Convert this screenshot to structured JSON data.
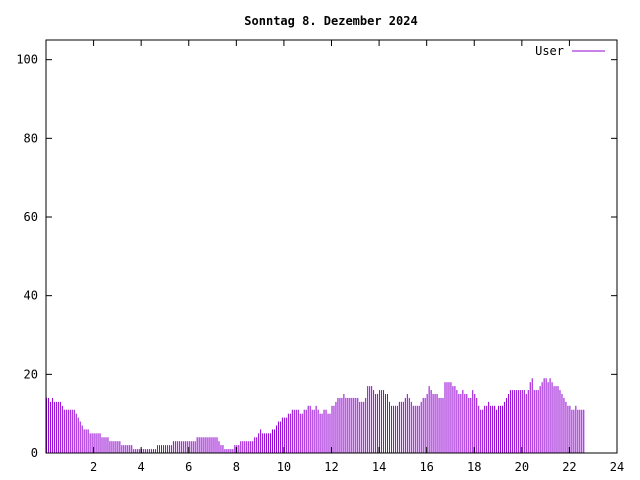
{
  "chart_data": {
    "type": "bar",
    "title": "Sonntag 8. Dezember 2024",
    "xlabel": "",
    "ylabel": "",
    "xlim": [
      0,
      24
    ],
    "ylim": [
      0,
      105
    ],
    "x_ticks": [
      2,
      4,
      6,
      8,
      10,
      12,
      14,
      16,
      18,
      20,
      22,
      24
    ],
    "x_tick_labels": [
      "2",
      "4",
      "6",
      "8",
      "10",
      "12",
      "14",
      "16",
      "18",
      "20",
      "22",
      "24"
    ],
    "y_ticks": [
      0,
      20,
      40,
      60,
      80,
      100
    ],
    "y_tick_labels": [
      "0",
      "20",
      "40",
      "60",
      "80",
      "100"
    ],
    "grid": false,
    "legend_position": "top-right",
    "interval_hours": 0.08333,
    "series": [
      {
        "name": "User",
        "color": "#9400d3",
        "values": [
          14,
          14,
          13,
          14,
          13,
          13,
          13,
          13,
          12,
          11,
          11,
          11,
          11,
          11,
          11,
          10,
          9,
          8,
          7,
          6,
          6,
          6,
          5,
          5,
          5,
          5,
          5,
          5,
          4,
          4,
          4,
          4,
          3,
          3,
          3,
          3,
          3,
          3,
          2,
          2,
          2,
          2,
          2,
          2,
          1,
          1,
          1,
          1,
          1,
          1,
          1,
          1,
          1,
          1,
          1,
          1,
          2,
          2,
          2,
          2,
          2,
          2,
          2,
          2,
          3,
          3,
          3,
          3,
          3,
          3,
          3,
          3,
          3,
          3,
          3,
          3,
          4,
          4,
          4,
          4,
          4,
          4,
          4,
          4,
          4,
          4,
          4,
          3,
          2,
          2,
          1,
          1,
          1,
          1,
          1,
          2,
          2,
          2,
          3,
          3,
          3,
          3,
          3,
          3,
          3,
          4,
          4,
          5,
          6,
          5,
          5,
          5,
          5,
          5,
          6,
          6,
          7,
          8,
          8,
          9,
          9,
          9,
          10,
          10,
          11,
          11,
          11,
          11,
          10,
          10,
          11,
          11,
          12,
          12,
          11,
          11,
          12,
          11,
          10,
          10,
          11,
          11,
          10,
          10,
          12,
          12,
          13,
          14,
          14,
          14,
          15,
          14,
          14,
          14,
          14,
          14,
          14,
          14,
          13,
          13,
          13,
          14,
          17,
          17,
          17,
          16,
          15,
          15,
          16,
          16,
          16,
          15,
          15,
          13,
          12,
          12,
          12,
          12,
          13,
          13,
          13,
          14,
          15,
          14,
          13,
          12,
          12,
          12,
          12,
          13,
          14,
          14,
          15,
          17,
          16,
          15,
          15,
          15,
          14,
          14,
          14,
          18,
          18,
          18,
          18,
          17,
          17,
          16,
          15,
          15,
          16,
          15,
          15,
          14,
          14,
          16,
          15,
          14,
          12,
          11,
          11,
          12,
          12,
          13,
          12,
          12,
          12,
          11,
          12,
          12,
          12,
          13,
          14,
          15,
          16,
          16,
          16,
          16,
          16,
          16,
          16,
          16,
          15,
          16,
          18,
          19,
          16,
          16,
          16,
          17,
          18,
          19,
          19,
          18,
          19,
          18,
          17,
          17,
          17,
          16,
          15,
          14,
          13,
          12,
          12,
          11,
          11,
          12,
          11,
          11,
          11,
          11
        ]
      }
    ]
  }
}
